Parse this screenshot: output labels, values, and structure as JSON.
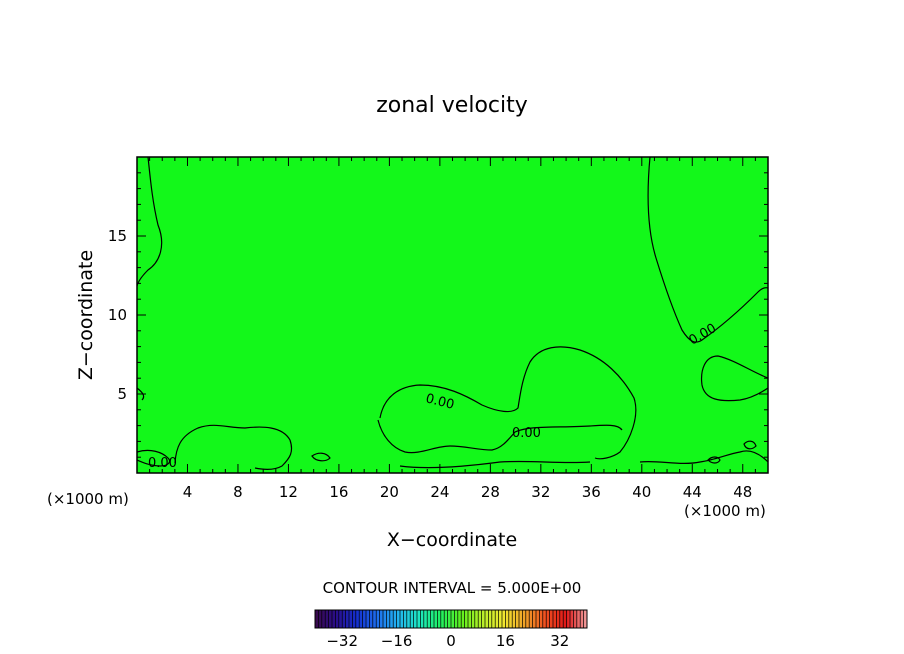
{
  "chart_data": {
    "type": "contour",
    "title": "zonal velocity",
    "xlabel": "X−coordinate",
    "ylabel": "Z−coordinate",
    "x_unit_left": "(×1000 m)",
    "x_unit_right": "(×1000 m)",
    "xlim": [
      0,
      50
    ],
    "ylim": [
      0,
      20
    ],
    "xticks": [
      4,
      8,
      12,
      16,
      20,
      24,
      28,
      32,
      36,
      40,
      44,
      48
    ],
    "yticks": [
      5,
      10,
      15
    ],
    "field_color": "#13f81a",
    "contour_level_labels": [
      "0.00",
      "0.00",
      "0.00",
      "0.00"
    ],
    "contour_interval_text": "CONTOUR INTERVAL = 5.000E+00",
    "colorbar": {
      "ticks": [
        "−32",
        "−16",
        "0",
        "16",
        "32"
      ],
      "tick_values": [
        -32,
        -16,
        0,
        16,
        32
      ],
      "range": [
        -40,
        40
      ],
      "colors": [
        "#3a0a4a",
        "#2a0d8a",
        "#1530d0",
        "#1e70ee",
        "#22b6f0",
        "#1ee8c0",
        "#20f060",
        "#5ff01e",
        "#b8f02a",
        "#f0e830",
        "#f0a428",
        "#f05020",
        "#e01818",
        "#f0a0a0"
      ]
    }
  }
}
